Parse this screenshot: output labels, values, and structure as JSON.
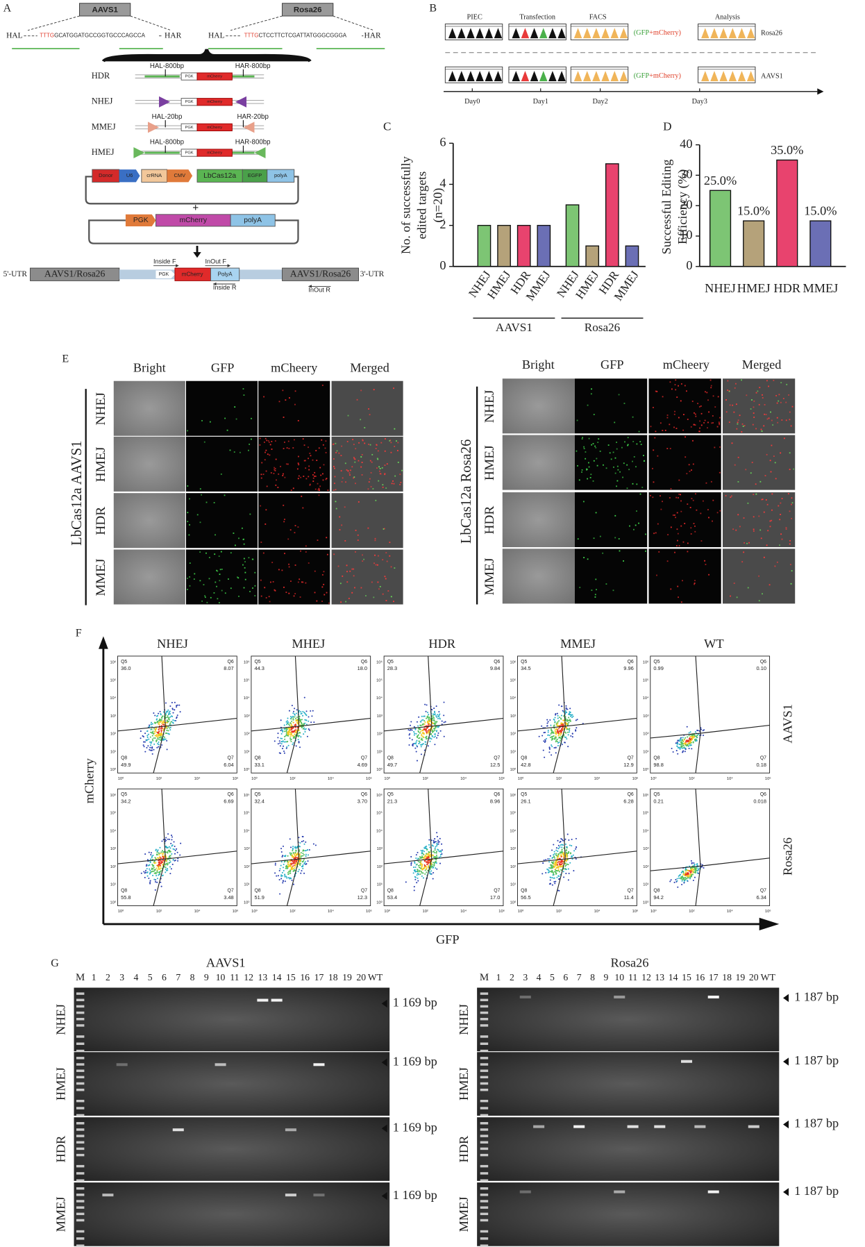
{
  "panel_a": {
    "label": "A",
    "loci": [
      "AAVS1",
      "Rosa26"
    ],
    "aavs1_seq": {
      "hal": "HAL",
      "pam": "TTTG",
      "seq": "GCATGGATGCCGGTGCCCAGCCA",
      "har": "HAR"
    },
    "rosa26_seq": {
      "hal": "HAL",
      "pam": "TTTG",
      "seq": "CTCCTTCTCGATTATGGGCGGGA",
      "har": "HAR"
    },
    "donors": [
      {
        "name": "HDR",
        "left": "HAL-800bp",
        "right": "HAR-800bp"
      },
      {
        "name": "NHEJ"
      },
      {
        "name": "MMEJ",
        "left": "HAL-20bp",
        "right": "HAR-20bp"
      },
      {
        "name": "HMEJ",
        "left": "HAL-800bp",
        "right": "HAR-800bp"
      }
    ],
    "donor_parts": [
      "PGK",
      "mCherry"
    ],
    "plasmid1": [
      "Donor",
      "U6",
      "crRNA",
      "CMV",
      "LbCas12a",
      "EGFP",
      "polyA"
    ],
    "plus": "+",
    "plasmid2": [
      "PGK",
      "mCherry",
      "polyA"
    ],
    "genome": {
      "utr5": "5'-UTR",
      "locus_left": "AAVS1/Rosa26",
      "pgk": "PGK",
      "mcherry": "mCherry",
      "polya": "PolyA",
      "locus_right": "AAVS1/Rosa26",
      "utr3": "3'-UTR",
      "primers": [
        "Inside F",
        "InOut F",
        "Inside R",
        "InOut R"
      ]
    }
  },
  "panel_b": {
    "label": "B",
    "steps": [
      "PIEC",
      "Transfection",
      "FACS",
      "Analysis"
    ],
    "note_gfp": "(GFP",
    "note_mcherry": "+mCherry)",
    "rows": [
      "Rosa26",
      "AAVS1"
    ],
    "days": [
      "Day0",
      "Day1",
      "Day2",
      "Day3"
    ]
  },
  "chart_data": [
    {
      "type": "bar",
      "label": "C",
      "ylabel": [
        "No. of successfully",
        "edited targets",
        "(n=20)"
      ],
      "categories": [
        "NHEJ",
        "HMEJ",
        "HDR",
        "MMEJ",
        "NHEJ",
        "HMEJ",
        "HDR",
        "MMEJ"
      ],
      "groups": [
        "AAVS1",
        "Rosa26"
      ],
      "values": [
        2,
        2,
        2,
        2,
        3,
        1,
        5,
        1
      ],
      "colors": [
        "#7dc574",
        "#b5a27a",
        "#e8436e",
        "#6b6fb5",
        "#7dc574",
        "#b5a27a",
        "#e8436e",
        "#6b6fb5"
      ],
      "ylim": [
        0,
        6
      ],
      "yticks": [
        0,
        2,
        4,
        6
      ]
    },
    {
      "type": "bar",
      "label": "D",
      "ylabel": [
        "Successful Editing",
        "Efficiency (%)"
      ],
      "categories": [
        "NHEJ",
        "HMEJ",
        "HDR",
        "MMEJ"
      ],
      "values": [
        25,
        15,
        35,
        15
      ],
      "value_labels": [
        "25.0%",
        "15.0%",
        "35.0%",
        "15.0%"
      ],
      "colors": [
        "#7dc574",
        "#b5a27a",
        "#e8436e",
        "#6b6fb5"
      ],
      "ylim": [
        0,
        40
      ],
      "yticks": [
        0,
        10,
        20,
        30,
        40
      ]
    }
  ],
  "panel_e": {
    "label": "E",
    "columns": [
      "Bright",
      "GFP",
      "mCheery",
      "Merged"
    ],
    "groups": [
      {
        "label": "LbCas12a AAVS1",
        "rows": [
          "NHEJ",
          "HMEJ",
          "HDR",
          "MMEJ"
        ]
      },
      {
        "label": "LbCas12a Rosa26",
        "rows": [
          "NHEJ",
          "HMEJ",
          "HDR",
          "MMEJ"
        ]
      }
    ]
  },
  "panel_f": {
    "label": "F",
    "columns": [
      "NHEJ",
      "MHEJ",
      "HDR",
      "MMEJ",
      "WT"
    ],
    "rows": [
      "AAVS1",
      "Rosa26"
    ],
    "y_label": "mCherry",
    "x_label": "GFP",
    "gates": [
      "Q5",
      "Q6",
      "Q8",
      "Q7"
    ],
    "xticks": [
      "10⁰",
      "10²",
      "10⁴",
      "10⁶"
    ],
    "yticks": [
      "10⁰",
      "10¹",
      "10²",
      "10³",
      "10⁴",
      "10⁵",
      "10⁶"
    ],
    "plots": [
      [
        [
          "36.0",
          "8.07",
          "49.9",
          "6.04"
        ],
        [
          "44.3",
          "18.0",
          "33.1",
          "4.69"
        ],
        [
          "28.3",
          "9.84",
          "49.7",
          "12.5"
        ],
        [
          "34.5",
          "9.96",
          "42.8",
          "12.9"
        ],
        [
          "0.99",
          "0.10",
          "98.8",
          "0.18"
        ]
      ],
      [
        [
          "34.2",
          "6.69",
          "55.8",
          "3.48"
        ],
        [
          "32.4",
          "3.70",
          "51.9",
          "12.3"
        ],
        [
          "21.3",
          "8.96",
          "53.4",
          "17.0"
        ],
        [
          "26.1",
          "6.28",
          "56.5",
          "11.4"
        ],
        [
          "0.21",
          "0.018",
          "94.2",
          "6.34"
        ]
      ]
    ]
  },
  "panel_g": {
    "label": "G",
    "rows": [
      "NHEJ",
      "HMEJ",
      "HDR",
      "MMEJ"
    ],
    "lanes": [
      "M",
      "1",
      "2",
      "3",
      "4",
      "5",
      "6",
      "7",
      "8",
      "9",
      "10",
      "11",
      "12",
      "13",
      "14",
      "15",
      "16",
      "17",
      "18",
      "19",
      "20",
      "WT"
    ],
    "gels": [
      {
        "title": "AAVS1",
        "band_size": "1 169 bp"
      },
      {
        "title": "Rosa26",
        "band_size": "1 187 bp"
      }
    ]
  }
}
